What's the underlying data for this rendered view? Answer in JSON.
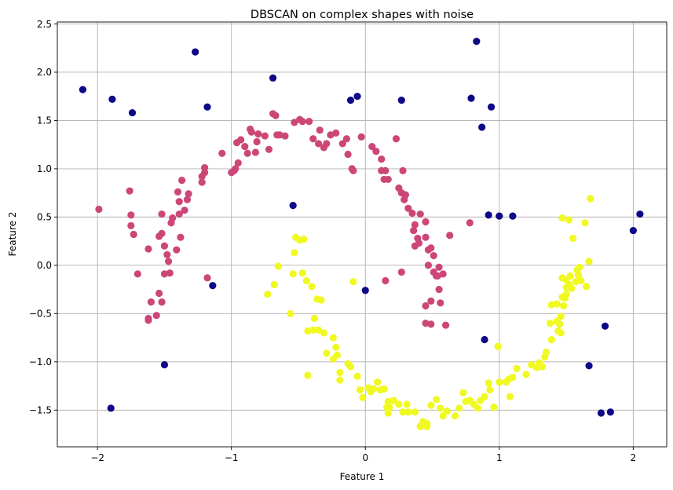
{
  "chart_data": {
    "type": "scatter",
    "title": "DBSCAN on complex shapes with noise",
    "xlabel": "Feature 1",
    "ylabel": "Feature 2",
    "xlim": [
      -2.3,
      2.25
    ],
    "ylim": [
      -1.88,
      2.52
    ],
    "xticks": [
      -2,
      -1,
      0,
      1,
      2
    ],
    "xtick_labels": [
      "−2",
      "−1",
      "0",
      "1",
      "2"
    ],
    "yticks": [
      -1.5,
      -1.0,
      -0.5,
      0.0,
      0.5,
      1.0,
      1.5,
      2.0,
      2.5
    ],
    "ytick_labels": [
      "−1.5",
      "−1.0",
      "−0.5",
      "0.0",
      "0.5",
      "1.0",
      "1.5",
      "2.0",
      "2.5"
    ],
    "grid": true,
    "series": [
      {
        "color": "#0d0887",
        "points": [
          [
            -2.11,
            1.82
          ],
          [
            -1.89,
            1.72
          ],
          [
            -1.74,
            1.58
          ],
          [
            -1.27,
            2.21
          ],
          [
            -1.18,
            1.64
          ],
          [
            -0.69,
            1.94
          ],
          [
            -0.11,
            1.71
          ],
          [
            -0.06,
            1.75
          ],
          [
            0.27,
            1.71
          ],
          [
            0.79,
            1.73
          ],
          [
            0.83,
            2.32
          ],
          [
            0.87,
            1.43
          ],
          [
            0.94,
            1.64
          ],
          [
            -0.54,
            0.62
          ],
          [
            0.92,
            0.52
          ],
          [
            1.0,
            0.51
          ],
          [
            1.1,
            0.51
          ],
          [
            2.05,
            0.53
          ],
          [
            2.0,
            0.36
          ],
          [
            -1.14,
            -0.21
          ],
          [
            -0.0,
            -0.26
          ],
          [
            0.89,
            -0.77
          ],
          [
            1.79,
            -0.63
          ],
          [
            1.67,
            -1.04
          ],
          [
            -1.5,
            -1.03
          ],
          [
            -1.9,
            -1.48
          ],
          [
            1.76,
            -1.53
          ],
          [
            1.83,
            -1.52
          ]
        ]
      },
      {
        "color": "#cc4778",
        "points": [
          [
            -1.99,
            0.58
          ],
          [
            -1.76,
            0.77
          ],
          [
            -1.75,
            0.52
          ],
          [
            -1.75,
            0.41
          ],
          [
            -1.73,
            0.32
          ],
          [
            -1.7,
            -0.09
          ],
          [
            -1.62,
            0.17
          ],
          [
            -1.6,
            -0.38
          ],
          [
            -1.62,
            -0.55
          ],
          [
            -1.62,
            -0.57
          ],
          [
            -1.56,
            -0.52
          ],
          [
            -1.54,
            -0.29
          ],
          [
            -1.52,
            -0.38
          ],
          [
            -1.54,
            0.3
          ],
          [
            -1.52,
            0.33
          ],
          [
            -1.52,
            0.53
          ],
          [
            -1.5,
            -0.09
          ],
          [
            -1.48,
            0.11
          ],
          [
            -1.5,
            0.2
          ],
          [
            -1.47,
            0.04
          ],
          [
            -1.46,
            -0.08
          ],
          [
            -1.45,
            0.44
          ],
          [
            -1.44,
            0.49
          ],
          [
            -1.41,
            0.16
          ],
          [
            -1.38,
            0.29
          ],
          [
            -1.39,
            0.53
          ],
          [
            -1.39,
            0.66
          ],
          [
            -1.4,
            0.76
          ],
          [
            -1.37,
            0.88
          ],
          [
            -1.35,
            0.57
          ],
          [
            -1.33,
            0.68
          ],
          [
            -1.32,
            0.74
          ],
          [
            -1.22,
            0.86
          ],
          [
            -1.22,
            0.92
          ],
          [
            -1.2,
            1.01
          ],
          [
            -1.2,
            0.96
          ],
          [
            -1.18,
            -0.13
          ],
          [
            -1.07,
            1.16
          ],
          [
            -1.0,
            0.96
          ],
          [
            -0.98,
            0.98
          ],
          [
            -0.97,
            1.0
          ],
          [
            -0.95,
            1.06
          ],
          [
            -0.96,
            1.27
          ],
          [
            -0.93,
            1.3
          ],
          [
            -0.9,
            1.23
          ],
          [
            -0.88,
            1.16
          ],
          [
            -0.86,
            1.41
          ],
          [
            -0.85,
            1.38
          ],
          [
            -0.82,
            1.17
          ],
          [
            -0.81,
            1.28
          ],
          [
            -0.8,
            1.36
          ],
          [
            -0.75,
            1.34
          ],
          [
            -0.72,
            1.2
          ],
          [
            -0.69,
            1.57
          ],
          [
            -0.67,
            1.55
          ],
          [
            -0.66,
            1.35
          ],
          [
            -0.64,
            1.35
          ],
          [
            -0.6,
            1.34
          ],
          [
            -0.53,
            1.48
          ],
          [
            -0.49,
            1.51
          ],
          [
            -0.47,
            1.49
          ],
          [
            -0.42,
            1.49
          ],
          [
            -0.39,
            1.31
          ],
          [
            -0.34,
            1.4
          ],
          [
            -0.35,
            1.26
          ],
          [
            -0.31,
            1.22
          ],
          [
            -0.29,
            1.26
          ],
          [
            -0.26,
            1.35
          ],
          [
            -0.22,
            1.37
          ],
          [
            -0.17,
            1.26
          ],
          [
            -0.14,
            1.31
          ],
          [
            -0.13,
            1.15
          ],
          [
            -0.1,
            1.0
          ],
          [
            -0.09,
            0.98
          ],
          [
            -0.03,
            1.33
          ],
          [
            0.05,
            1.23
          ],
          [
            0.08,
            1.18
          ],
          [
            0.12,
            1.1
          ],
          [
            0.12,
            0.98
          ],
          [
            0.14,
            0.89
          ],
          [
            0.15,
            0.98
          ],
          [
            0.17,
            0.89
          ],
          [
            0.23,
            1.31
          ],
          [
            0.25,
            0.8
          ],
          [
            0.28,
            0.98
          ],
          [
            0.27,
            0.75
          ],
          [
            0.29,
            0.68
          ],
          [
            0.3,
            0.73
          ],
          [
            0.32,
            0.59
          ],
          [
            0.35,
            0.54
          ],
          [
            0.36,
            0.36
          ],
          [
            0.37,
            0.2
          ],
          [
            0.37,
            0.42
          ],
          [
            0.39,
            0.28
          ],
          [
            0.4,
            0.23
          ],
          [
            0.41,
            0.53
          ],
          [
            0.45,
            0.45
          ],
          [
            0.45,
            0.29
          ],
          [
            0.47,
            0.16
          ],
          [
            0.47,
            0.0
          ],
          [
            0.49,
            0.18
          ],
          [
            0.51,
            0.1
          ],
          [
            0.51,
            -0.07
          ],
          [
            0.53,
            -0.11
          ],
          [
            0.55,
            -0.02
          ],
          [
            0.55,
            -0.25
          ],
          [
            0.56,
            -0.39
          ],
          [
            0.45,
            -0.42
          ],
          [
            0.49,
            -0.37
          ],
          [
            0.45,
            -0.6
          ],
          [
            0.49,
            -0.61
          ],
          [
            0.6,
            -0.62
          ],
          [
            0.63,
            0.31
          ],
          [
            0.78,
            0.44
          ],
          [
            0.15,
            -0.16
          ],
          [
            0.27,
            -0.07
          ],
          [
            0.54,
            -0.11
          ],
          [
            0.58,
            -0.09
          ]
        ]
      },
      {
        "color": "#f0f921",
        "points": [
          [
            -0.73,
            -0.3
          ],
          [
            -0.68,
            -0.2
          ],
          [
            -0.65,
            -0.01
          ],
          [
            -0.56,
            -0.5
          ],
          [
            -0.54,
            -0.09
          ],
          [
            -0.53,
            0.13
          ],
          [
            -0.52,
            0.29
          ],
          [
            -0.49,
            0.26
          ],
          [
            -0.46,
            0.27
          ],
          [
            -0.47,
            -0.08
          ],
          [
            -0.44,
            -0.16
          ],
          [
            -0.43,
            -0.68
          ],
          [
            -0.43,
            -1.14
          ],
          [
            -0.4,
            -0.22
          ],
          [
            -0.39,
            -0.67
          ],
          [
            -0.38,
            -0.55
          ],
          [
            -0.36,
            -0.35
          ],
          [
            -0.35,
            -0.67
          ],
          [
            -0.33,
            -0.36
          ],
          [
            -0.31,
            -0.7
          ],
          [
            -0.29,
            -0.91
          ],
          [
            -0.24,
            -0.75
          ],
          [
            -0.22,
            -0.85
          ],
          [
            -0.24,
            -0.97
          ],
          [
            -0.21,
            -0.93
          ],
          [
            -0.19,
            -1.11
          ],
          [
            -0.19,
            -1.19
          ],
          [
            -0.13,
            -1.02
          ],
          [
            -0.11,
            -1.05
          ],
          [
            -0.09,
            -0.17
          ],
          [
            -0.06,
            -1.15
          ],
          [
            -0.04,
            -1.29
          ],
          [
            -0.02,
            -1.37
          ],
          [
            0.02,
            -1.27
          ],
          [
            0.04,
            -1.31
          ],
          [
            0.06,
            -1.28
          ],
          [
            0.09,
            -1.21
          ],
          [
            0.11,
            -1.29
          ],
          [
            0.14,
            -1.28
          ],
          [
            0.16,
            -1.47
          ],
          [
            0.17,
            -1.41
          ],
          [
            0.17,
            -1.53
          ],
          [
            0.18,
            -1.47
          ],
          [
            0.21,
            -1.4
          ],
          [
            0.25,
            -1.44
          ],
          [
            0.28,
            -1.52
          ],
          [
            0.31,
            -1.44
          ],
          [
            0.32,
            -1.52
          ],
          [
            0.37,
            -1.52
          ],
          [
            0.41,
            -1.67
          ],
          [
            0.43,
            -1.62
          ],
          [
            0.44,
            -1.66
          ],
          [
            0.46,
            -1.64
          ],
          [
            0.46,
            -1.67
          ],
          [
            0.49,
            -1.45
          ],
          [
            0.53,
            -1.39
          ],
          [
            0.56,
            -1.48
          ],
          [
            0.58,
            -1.56
          ],
          [
            0.61,
            -1.51
          ],
          [
            0.67,
            -1.56
          ],
          [
            0.7,
            -1.48
          ],
          [
            0.73,
            -1.32
          ],
          [
            0.75,
            -1.41
          ],
          [
            0.78,
            -1.4
          ],
          [
            0.81,
            -1.44
          ],
          [
            0.84,
            -1.48
          ],
          [
            0.86,
            -1.4
          ],
          [
            0.89,
            -1.36
          ],
          [
            0.92,
            -1.22
          ],
          [
            0.93,
            -1.29
          ],
          [
            0.96,
            -1.47
          ],
          [
            0.99,
            -0.84
          ],
          [
            1.0,
            -1.21
          ],
          [
            1.05,
            -1.21
          ],
          [
            1.07,
            -1.18
          ],
          [
            1.08,
            -1.36
          ],
          [
            1.1,
            -1.16
          ],
          [
            1.13,
            -1.07
          ],
          [
            1.2,
            -1.13
          ],
          [
            1.24,
            -1.03
          ],
          [
            1.28,
            -1.06
          ],
          [
            1.3,
            -1.01
          ],
          [
            1.32,
            -1.05
          ],
          [
            1.34,
            -0.95
          ],
          [
            1.35,
            -0.9
          ],
          [
            1.39,
            -0.77
          ],
          [
            1.38,
            -0.6
          ],
          [
            1.43,
            -0.58
          ],
          [
            1.44,
            -0.68
          ],
          [
            1.45,
            -0.61
          ],
          [
            1.46,
            -0.53
          ],
          [
            1.47,
            -0.33
          ],
          [
            1.48,
            -0.42
          ],
          [
            1.49,
            -0.34
          ],
          [
            1.5,
            -0.23
          ],
          [
            1.5,
            -0.3
          ],
          [
            1.52,
            -0.2
          ],
          [
            1.53,
            -0.11
          ],
          [
            1.54,
            -0.24
          ],
          [
            1.57,
            -0.17
          ],
          [
            1.59,
            -0.1
          ],
          [
            1.6,
            -0.02
          ],
          [
            1.61,
            -0.16
          ],
          [
            1.64,
            0.44
          ],
          [
            1.65,
            -0.22
          ],
          [
            1.67,
            0.04
          ],
          [
            1.68,
            0.69
          ],
          [
            1.52,
            0.47
          ],
          [
            1.55,
            0.28
          ],
          [
            1.47,
            0.49
          ],
          [
            1.5,
            -0.15
          ],
          [
            1.43,
            -0.4
          ],
          [
            1.46,
            -0.7
          ],
          [
            1.39,
            -0.41
          ],
          [
            1.58,
            -0.05
          ],
          [
            1.47,
            -0.13
          ]
        ]
      }
    ]
  }
}
